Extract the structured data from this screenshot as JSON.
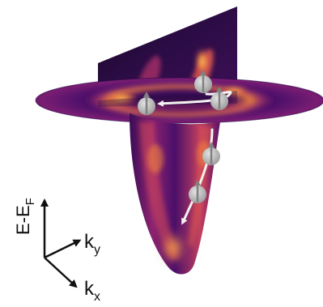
{
  "axes": {
    "energy": {
      "main": "E-E",
      "subscript": "F"
    },
    "ky": {
      "main": "k",
      "subscript": "y"
    },
    "kx": {
      "main": "k",
      "subscript": "x"
    }
  },
  "colors": {
    "colormap": [
      "#2a0a45",
      "#4a0f6a",
      "#7a1d73",
      "#b0336a",
      "#e1584f",
      "#f58a3a",
      "#fbc36a"
    ],
    "axis": "#111111",
    "spin_marker": "#b9b9b9",
    "spin_arrow": "#f2f2f2"
  },
  "icons": [
    "spin-up-marker-icon",
    "spin-path-arrow-icon",
    "axis-arrow-icon"
  ]
}
